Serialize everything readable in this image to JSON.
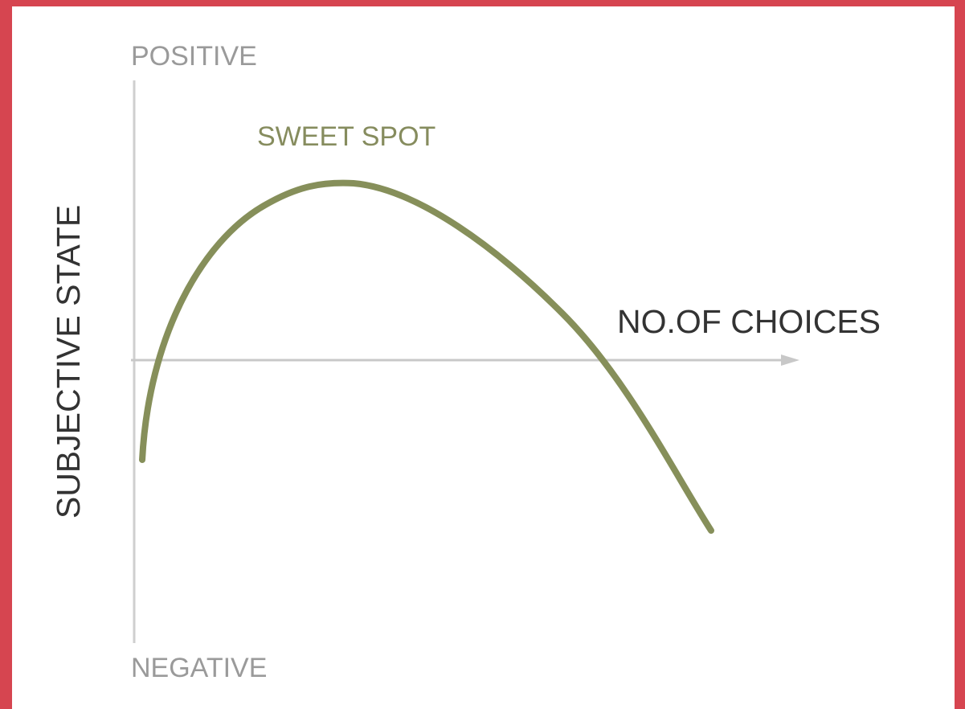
{
  "diagram": {
    "positive": "POSITIVE",
    "negative": "NEGATIVE",
    "peak_label": "SWEET SPOT",
    "x_axis_label": "NO.OF CHOICES",
    "y_axis_label": "SUBJECTIVE STATE"
  }
}
